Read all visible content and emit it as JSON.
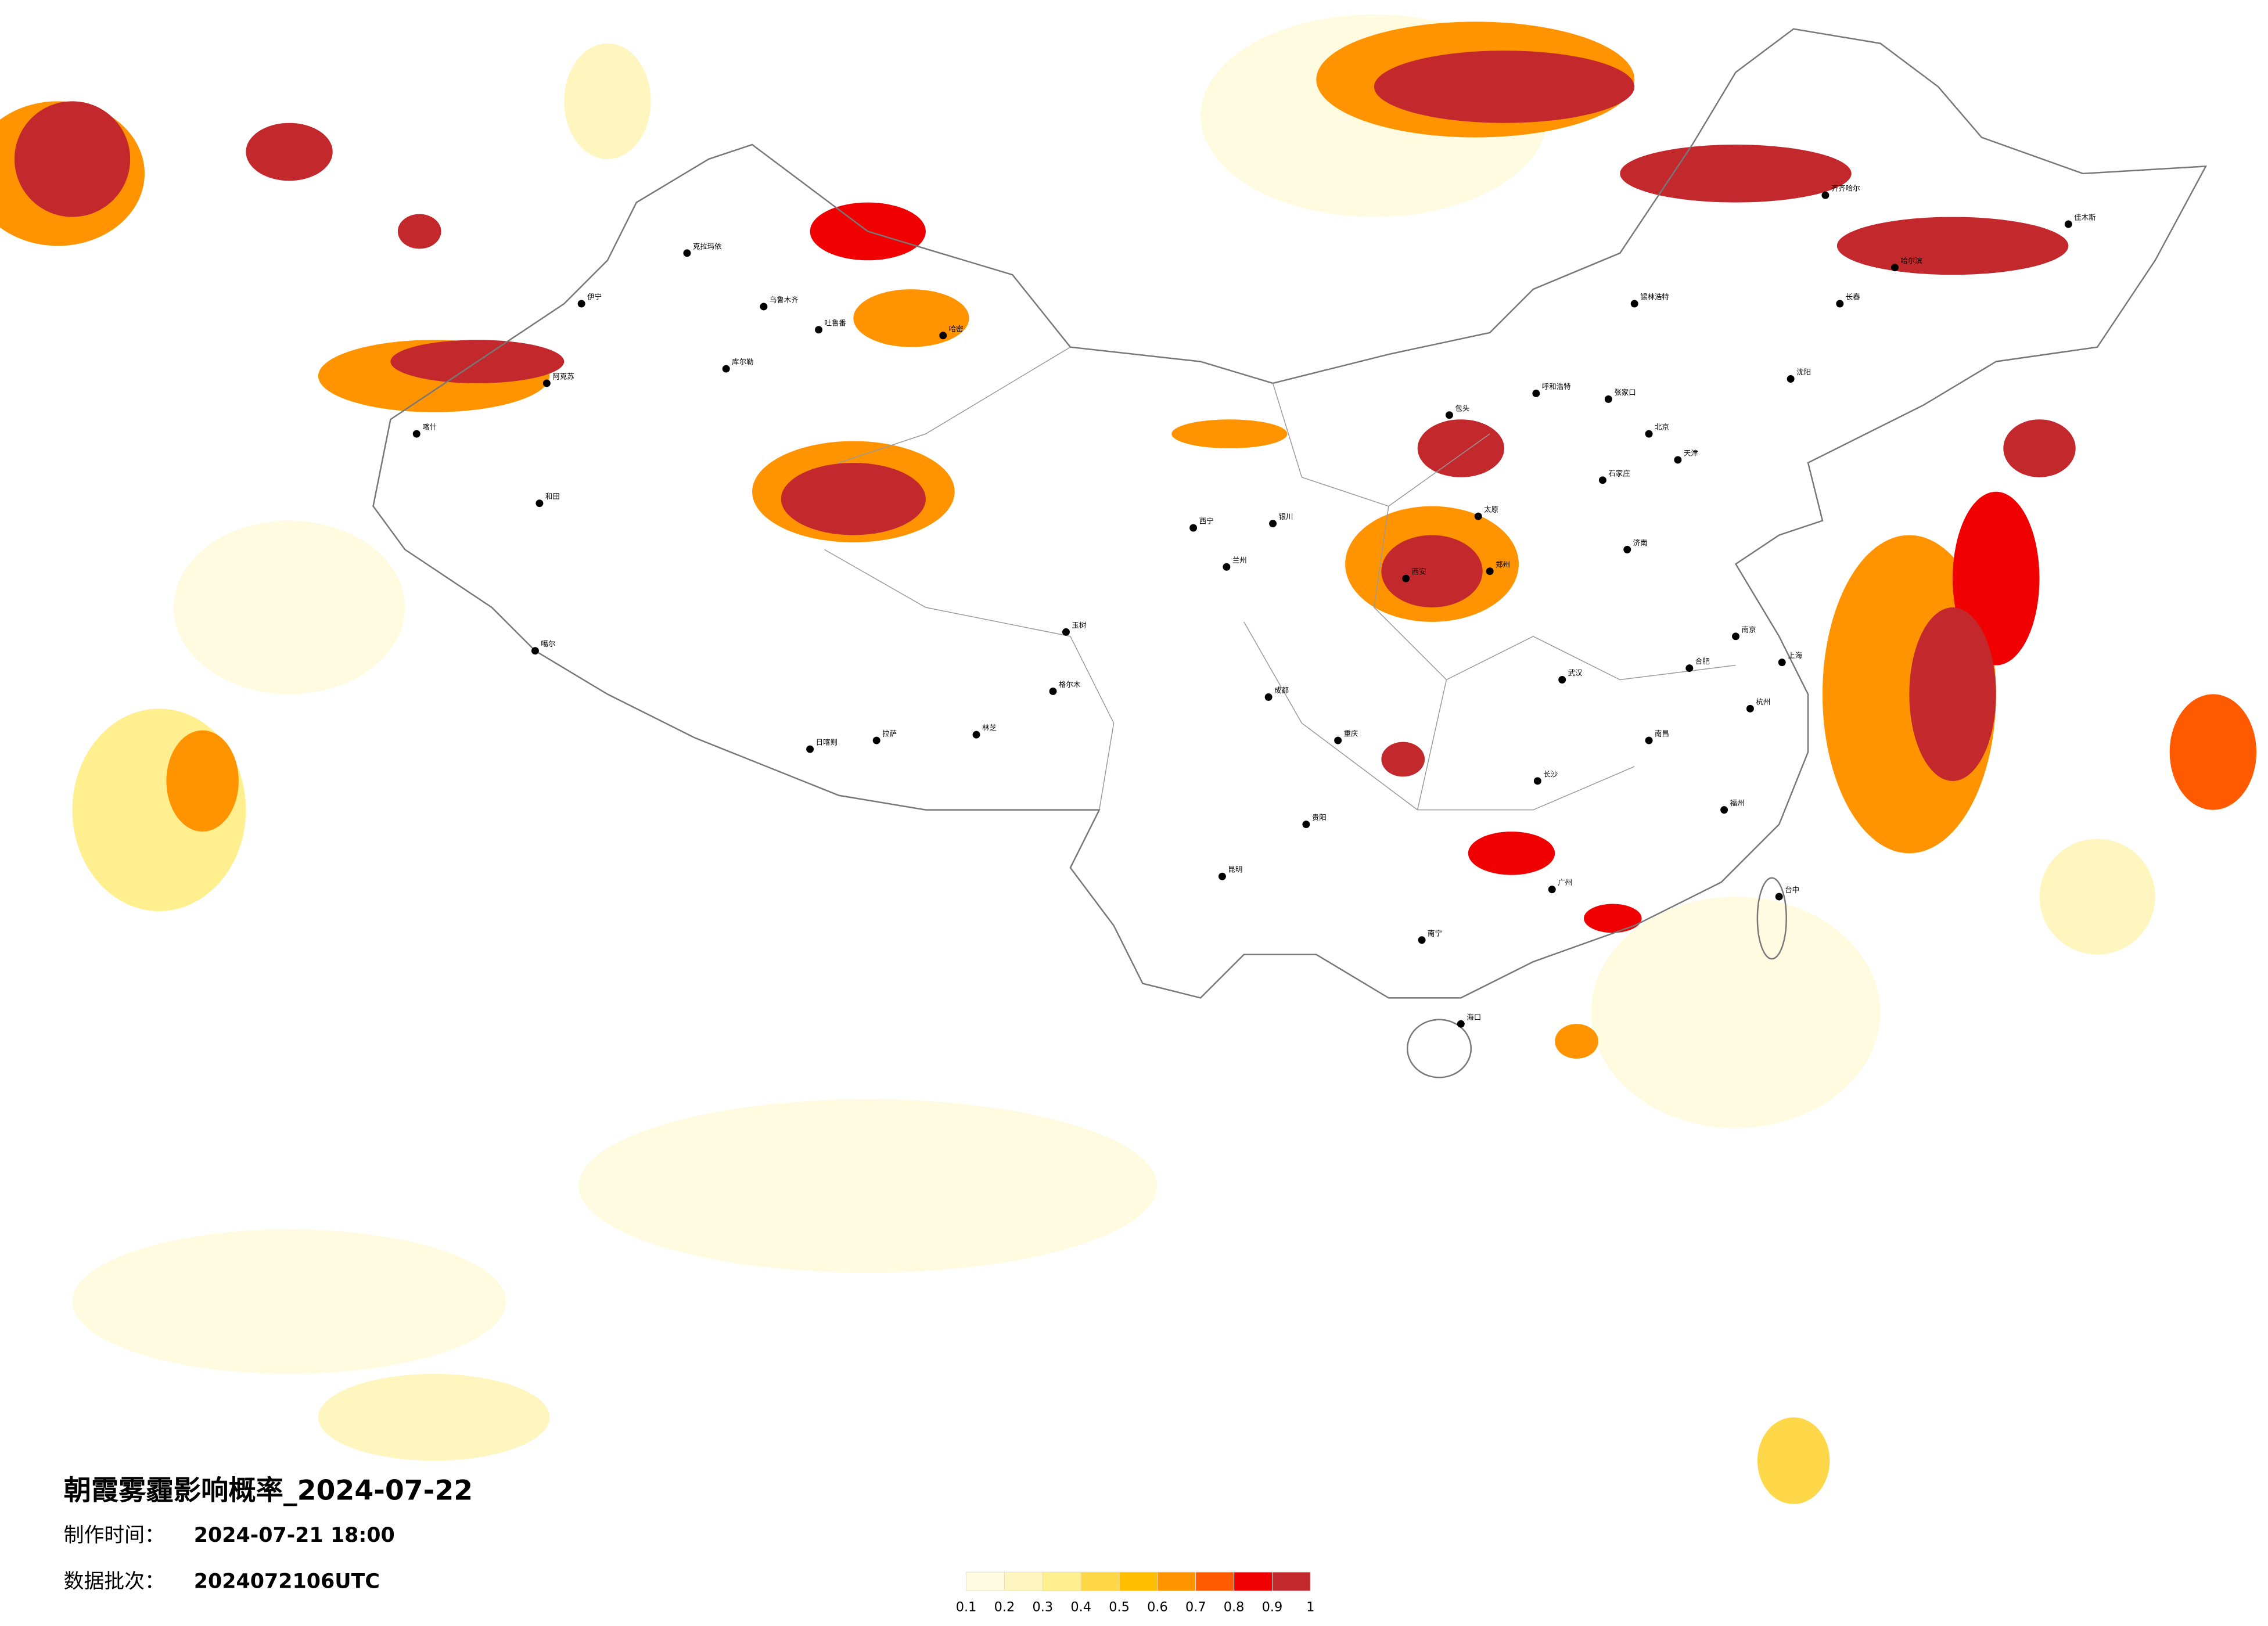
{
  "header": {
    "title": "朝霞雾霾影响概率_2024-07-22",
    "made_label": "制作时间：",
    "made_time": "2024-07-21 18:00",
    "batch_label": "数据批次：",
    "batch": "2024072106UTC"
  },
  "legend": {
    "colors": [
      "#fffbe0",
      "#fff6bf",
      "#ffef8f",
      "#ffd84a",
      "#ffbf00",
      "#ff9400",
      "#ff5a00",
      "#f00000",
      "#c3282d"
    ],
    "ticks": [
      0.1,
      0.2,
      0.3,
      0.4,
      0.5,
      0.6,
      0.7,
      0.8,
      0.9,
      1
    ]
  },
  "cities": [
    "克拉玛依",
    "伊宁",
    "乌鲁木齐",
    "吐鲁番",
    "库尔勒",
    "阿克苏",
    "喀什",
    "和田",
    "哈密",
    "格尔木",
    "噶尔",
    "日喀则",
    "拉萨",
    "林芝",
    "玉树",
    "西宁",
    "兰州",
    "银川",
    "包头",
    "呼和浩特",
    "张家口",
    "北京",
    "天津",
    "石家庄",
    "太原",
    "郑州",
    "西安",
    "成都",
    "重庆",
    "贵阳",
    "昆明",
    "南宁",
    "长沙",
    "武汉",
    "南昌",
    "合肥",
    "南京",
    "上海",
    "杭州",
    "福州",
    "广州",
    "海口",
    "济南",
    "沈阳",
    "长春",
    "哈尔滨",
    "齐齐哈尔",
    "佳木斯",
    "锡林浩特",
    "台中"
  ]
}
